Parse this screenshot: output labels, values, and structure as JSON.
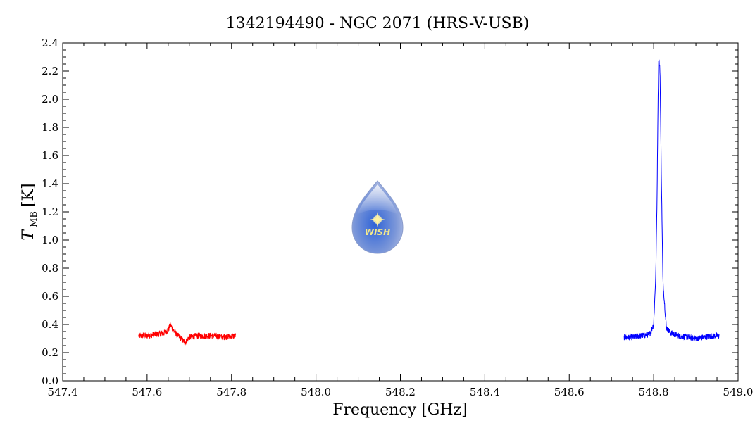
{
  "chart_data": {
    "type": "line",
    "title": "1342194490 - NGC 2071 (HRS-V-USB)",
    "xlabel": "Frequency [GHz]",
    "ylabel_main": "T",
    "ylabel_sub": "MB",
    "ylabel_unit": "[K]",
    "xlim": [
      547.4,
      549.0
    ],
    "ylim": [
      0.0,
      2.4
    ],
    "x_ticks": [
      "547.4",
      "547.6",
      "547.8",
      "548.0",
      "548.2",
      "548.4",
      "548.6",
      "548.8",
      "549.0"
    ],
    "y_ticks": [
      "0.0",
      "0.2",
      "0.4",
      "0.6",
      "0.8",
      "1.0",
      "1.2",
      "1.4",
      "1.6",
      "1.8",
      "2.0",
      "2.2",
      "2.4"
    ],
    "series": [
      {
        "color": "#ff0000",
        "x": [
          547.58,
          547.6,
          547.62,
          547.64,
          547.65,
          547.655,
          547.66,
          547.665,
          547.67,
          547.68,
          547.69,
          547.7,
          547.72,
          547.74,
          547.76,
          547.78,
          547.81
        ],
        "y": [
          0.32,
          0.32,
          0.33,
          0.34,
          0.36,
          0.4,
          0.37,
          0.35,
          0.33,
          0.3,
          0.27,
          0.31,
          0.32,
          0.32,
          0.32,
          0.31,
          0.32
        ]
      },
      {
        "color": "#0000ff",
        "x": [
          548.73,
          548.75,
          548.77,
          548.79,
          548.8,
          548.805,
          548.808,
          548.81,
          548.812,
          548.815,
          548.818,
          548.822,
          548.83,
          548.84,
          548.86,
          548.88,
          548.9,
          548.92,
          548.94,
          548.955
        ],
        "y": [
          0.31,
          0.31,
          0.32,
          0.33,
          0.4,
          0.75,
          1.3,
          1.9,
          2.3,
          2.2,
          1.5,
          0.7,
          0.38,
          0.34,
          0.32,
          0.31,
          0.3,
          0.31,
          0.32,
          0.32
        ]
      }
    ],
    "grid": false,
    "logo": {
      "name": "wish-logo",
      "text": "WISH"
    }
  }
}
